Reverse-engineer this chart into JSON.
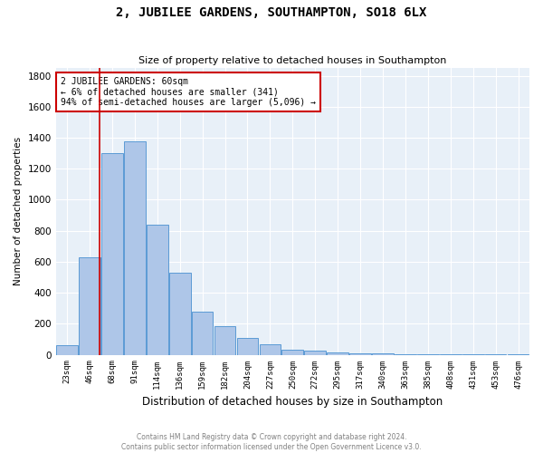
{
  "title": "2, JUBILEE GARDENS, SOUTHAMPTON, SO18 6LX",
  "subtitle": "Size of property relative to detached houses in Southampton",
  "xlabel": "Distribution of detached houses by size in Southampton",
  "ylabel": "Number of detached properties",
  "footer_line1": "Contains HM Land Registry data © Crown copyright and database right 2024.",
  "footer_line2": "Contains public sector information licensed under the Open Government Licence v3.0.",
  "categories": [
    "23sqm",
    "46sqm",
    "68sqm",
    "91sqm",
    "114sqm",
    "136sqm",
    "159sqm",
    "182sqm",
    "204sqm",
    "227sqm",
    "250sqm",
    "272sqm",
    "295sqm",
    "317sqm",
    "340sqm",
    "363sqm",
    "385sqm",
    "408sqm",
    "431sqm",
    "453sqm",
    "476sqm"
  ],
  "values": [
    62,
    630,
    1300,
    1375,
    840,
    530,
    280,
    185,
    110,
    65,
    33,
    28,
    15,
    12,
    8,
    5,
    3,
    2,
    1,
    1,
    1
  ],
  "bar_color": "#aec6e8",
  "bar_edge_color": "#5b9bd5",
  "background_color": "#e8f0f8",
  "grid_color": "#ffffff",
  "red_line_x": 1.42,
  "annotation_text": "2 JUBILEE GARDENS: 60sqm\n← 6% of detached houses are smaller (341)\n94% of semi-detached houses are larger (5,096) →",
  "annotation_box_color": "#cc0000",
  "ylim": [
    0,
    1850
  ],
  "yticks": [
    0,
    200,
    400,
    600,
    800,
    1000,
    1200,
    1400,
    1600,
    1800
  ]
}
